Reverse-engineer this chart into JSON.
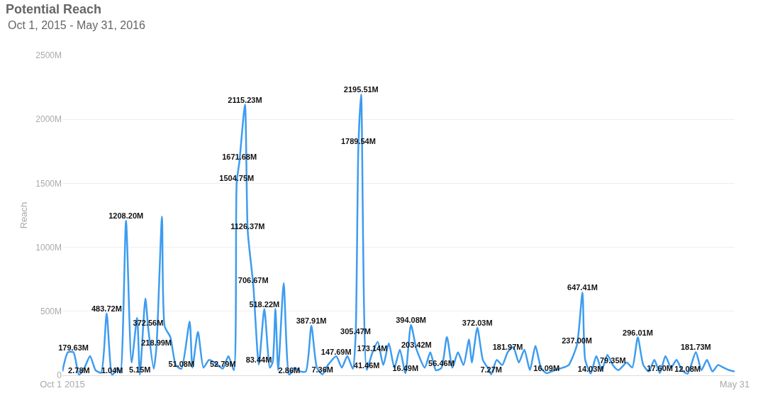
{
  "chart_data": {
    "type": "line",
    "title": "Potential Reach",
    "subtitle": "Oct 1, 2015 - May 31, 2016",
    "ylabel": "Reach",
    "x": [
      "2015-10-01",
      "2015-10-03",
      "2015-10-05",
      "2015-10-07",
      "2015-10-09",
      "2015-10-11",
      "2015-10-13",
      "2015-10-15",
      "2015-10-17",
      "2015-10-19",
      "2015-10-21",
      "2015-10-22",
      "2015-10-24",
      "2015-10-26",
      "2015-10-28",
      "2015-10-29",
      "2015-10-31",
      "2015-11-01",
      "2015-11-03",
      "2015-11-04",
      "2015-11-06",
      "2015-11-07",
      "2015-11-09",
      "2015-11-11",
      "2015-11-13",
      "2015-11-16",
      "2015-11-17",
      "2015-11-19",
      "2015-11-21",
      "2015-11-23",
      "2015-11-25",
      "2015-11-28",
      "2015-11-30",
      "2015-12-02",
      "2015-12-03",
      "2015-12-04",
      "2015-12-06",
      "2015-12-07",
      "2015-12-09",
      "2015-12-11",
      "2015-12-13",
      "2015-12-15",
      "2015-12-16",
      "2015-12-17",
      "2015-12-18",
      "2015-12-20",
      "2015-12-22",
      "2015-12-24",
      "2015-12-26",
      "2015-12-28",
      "2015-12-30",
      "2016-01-01",
      "2016-01-03",
      "2016-01-05",
      "2016-01-08",
      "2016-01-10",
      "2016-01-12",
      "2016-01-14",
      "2016-01-15",
      "2016-01-16",
      "2016-01-17",
      "2016-01-19",
      "2016-01-21",
      "2016-01-23",
      "2016-01-25",
      "2016-01-27",
      "2016-01-29",
      "2016-01-31",
      "2016-02-02",
      "2016-02-04",
      "2016-02-06",
      "2016-02-09",
      "2016-02-11",
      "2016-02-13",
      "2016-02-15",
      "2016-02-17",
      "2016-02-19",
      "2016-02-21",
      "2016-02-23",
      "2016-02-25",
      "2016-02-26",
      "2016-02-28",
      "2016-03-01",
      "2016-03-03",
      "2016-03-04",
      "2016-03-06",
      "2016-03-08",
      "2016-03-10",
      "2016-03-12",
      "2016-03-14",
      "2016-03-16",
      "2016-03-18",
      "2016-03-20",
      "2016-03-22",
      "2016-03-24",
      "2016-03-27",
      "2016-03-30",
      "2016-04-01",
      "2016-04-04",
      "2016-04-06",
      "2016-04-07",
      "2016-04-09",
      "2016-04-11",
      "2016-04-13",
      "2016-04-15",
      "2016-04-17",
      "2016-04-19",
      "2016-04-22",
      "2016-04-24",
      "2016-04-26",
      "2016-04-28",
      "2016-04-30",
      "2016-05-02",
      "2016-05-04",
      "2016-05-06",
      "2016-05-08",
      "2016-05-10",
      "2016-05-12",
      "2016-05-14",
      "2016-05-17",
      "2016-05-19",
      "2016-05-21",
      "2016-05-23",
      "2016-05-25",
      "2016-05-27",
      "2016-05-29",
      "2016-05-31"
    ],
    "series": [
      {
        "color": "#3d9cf0",
        "values": [
          30,
          180,
          179.63,
          2.78,
          60,
          150,
          40,
          20,
          483.72,
          1.04,
          60,
          20,
          1208.2,
          100,
          450,
          5.15,
          600,
          372.56,
          50,
          218.99,
          1240,
          380,
          300,
          80,
          51.08,
          420,
          60,
          340,
          60,
          120,
          100,
          52.79,
          150,
          40,
          1504.75,
          1671.68,
          2115.23,
          1126.37,
          706.67,
          83.44,
          518.22,
          60,
          100,
          520,
          40,
          720,
          2.86,
          60,
          30,
          30,
          387.91,
          60,
          7.36,
          80,
          147.69,
          60,
          150,
          50,
          305.47,
          1789.54,
          2195.51,
          41.46,
          173.14,
          260,
          80,
          250,
          60,
          200,
          16.49,
          394.08,
          203.42,
          60,
          180,
          40,
          56.46,
          300,
          60,
          180,
          80,
          280,
          100,
          372.03,
          120,
          50,
          7.27,
          120,
          80,
          181.97,
          220,
          100,
          200,
          40,
          230,
          60,
          16.09,
          40,
          60,
          80,
          237.0,
          647.41,
          120,
          14.03,
          150,
          40,
          160,
          79.35,
          40,
          100,
          60,
          296.01,
          80,
          30,
          120,
          17.6,
          150,
          60,
          120,
          40,
          12.08,
          181.73,
          40,
          120,
          30,
          80,
          60,
          40,
          30
        ],
        "value_labels": [
          null,
          null,
          "179.63M",
          "2.78M",
          null,
          null,
          null,
          null,
          "483.72M",
          "1.04M",
          null,
          null,
          "1208.20M",
          null,
          null,
          "5.15M",
          null,
          "372.56M",
          null,
          "218.99M",
          null,
          null,
          null,
          null,
          "51.08M",
          null,
          null,
          null,
          null,
          null,
          null,
          "52.79M",
          null,
          null,
          "1504.75M",
          "1671.68M",
          "2115.23M",
          "1126.37M",
          "706.67M",
          "83.44M",
          "518.22M",
          null,
          null,
          null,
          null,
          null,
          "2.86M",
          null,
          null,
          null,
          "387.91M",
          null,
          "7.36M",
          null,
          "147.69M",
          null,
          null,
          null,
          "305.47M",
          "1789.54M",
          "2195.51M",
          "41.46M",
          "173.14M",
          null,
          null,
          null,
          null,
          null,
          "16.49M",
          "394.08M",
          "203.42M",
          null,
          null,
          null,
          "56.46M",
          null,
          null,
          null,
          null,
          null,
          null,
          "372.03M",
          null,
          null,
          "7.27M",
          null,
          null,
          "181.97M",
          null,
          null,
          null,
          null,
          null,
          null,
          "16.09M",
          null,
          null,
          null,
          "237.00M",
          "647.41M",
          null,
          "14.03M",
          null,
          null,
          null,
          "79.35M",
          null,
          null,
          null,
          "296.01M",
          null,
          null,
          null,
          "17.60M",
          null,
          null,
          null,
          null,
          "12.08M",
          "181.73M",
          null,
          null,
          null,
          null,
          null,
          null,
          null
        ]
      }
    ],
    "xlim": [
      "2015-10-01",
      "2016-05-31"
    ],
    "xticks": [
      {
        "value": "2015-10-01",
        "label": "Oct 1 2015"
      },
      {
        "value": "2016-05-31",
        "label": "May 31"
      }
    ],
    "ylim": [
      0,
      2500
    ],
    "yticks": [
      {
        "value": 0,
        "label": "0"
      },
      {
        "value": 500,
        "label": "500M"
      },
      {
        "value": 1000,
        "label": "1000M"
      },
      {
        "value": 1500,
        "label": "1500M"
      },
      {
        "value": 2000,
        "label": "2000M"
      },
      {
        "value": 2500,
        "label": "2500M"
      }
    ],
    "grid": "y",
    "legend": false,
    "marker": "none",
    "line_style": "solid"
  }
}
